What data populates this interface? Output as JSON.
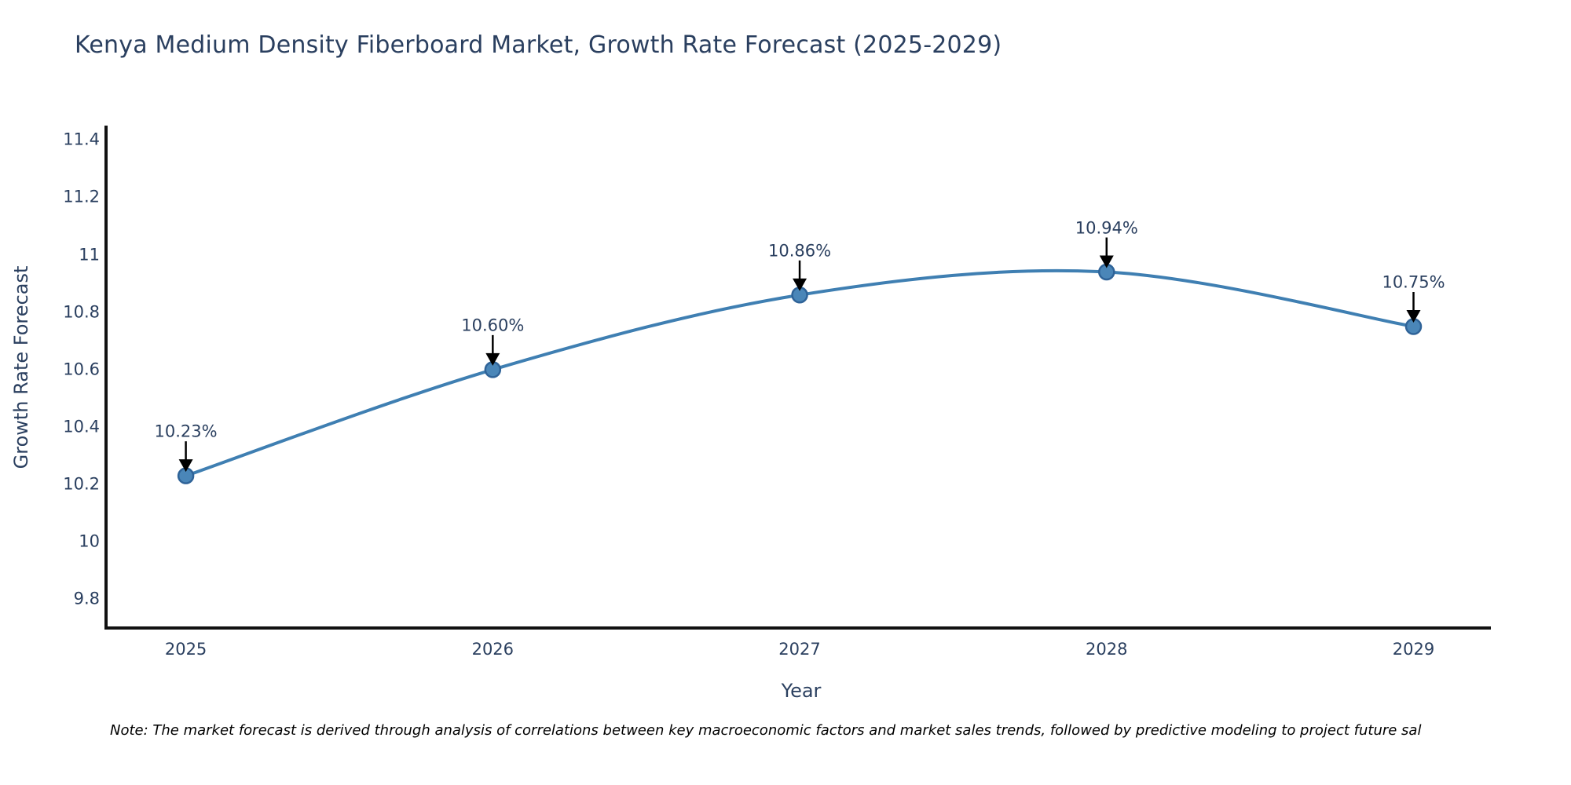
{
  "page": {
    "background": "#ffffff"
  },
  "chart_data": {
    "type": "line",
    "title": "Kenya Medium Density Fiberboard Market, Growth Rate Forecast (2025-2029)",
    "xlabel": "Year",
    "ylabel": "Growth Rate Forecast",
    "x": [
      2025,
      2026,
      2027,
      2028,
      2029
    ],
    "xtick_labels": [
      "2025",
      "2026",
      "2027",
      "2028",
      "2029"
    ],
    "series": [
      {
        "name": "Growth Rate Forecast",
        "values": [
          10.23,
          10.6,
          10.86,
          10.94,
          10.75
        ],
        "point_labels": [
          "10.23%",
          "10.60%",
          "10.86%",
          "10.94%",
          "10.75%"
        ]
      }
    ],
    "yticks": [
      9.8,
      10,
      10.2,
      10.4,
      10.6,
      10.8,
      11,
      11.2,
      11.4
    ],
    "ytick_labels": [
      "9.8",
      "10",
      "10.2",
      "10.4",
      "10.6",
      "10.8",
      "11",
      "11.2",
      "11.4"
    ],
    "ylim": [
      9.7,
      11.45
    ],
    "xlim": [
      2024.74,
      2029.27
    ],
    "line_shape": "spline",
    "grid": false,
    "legend": "none",
    "colors": {
      "line": "#3f7fb2",
      "marker_fill": "#4a86b8",
      "marker_edge": "#2f6398",
      "axis": "#111111",
      "text": "#2a3f5f",
      "arrow": "#000000"
    }
  },
  "note": {
    "text": "Note: The market forecast is derived through analysis of correlations between key macroeconomic factors and market sales trends, followed by predictive modeling to project future sal"
  }
}
